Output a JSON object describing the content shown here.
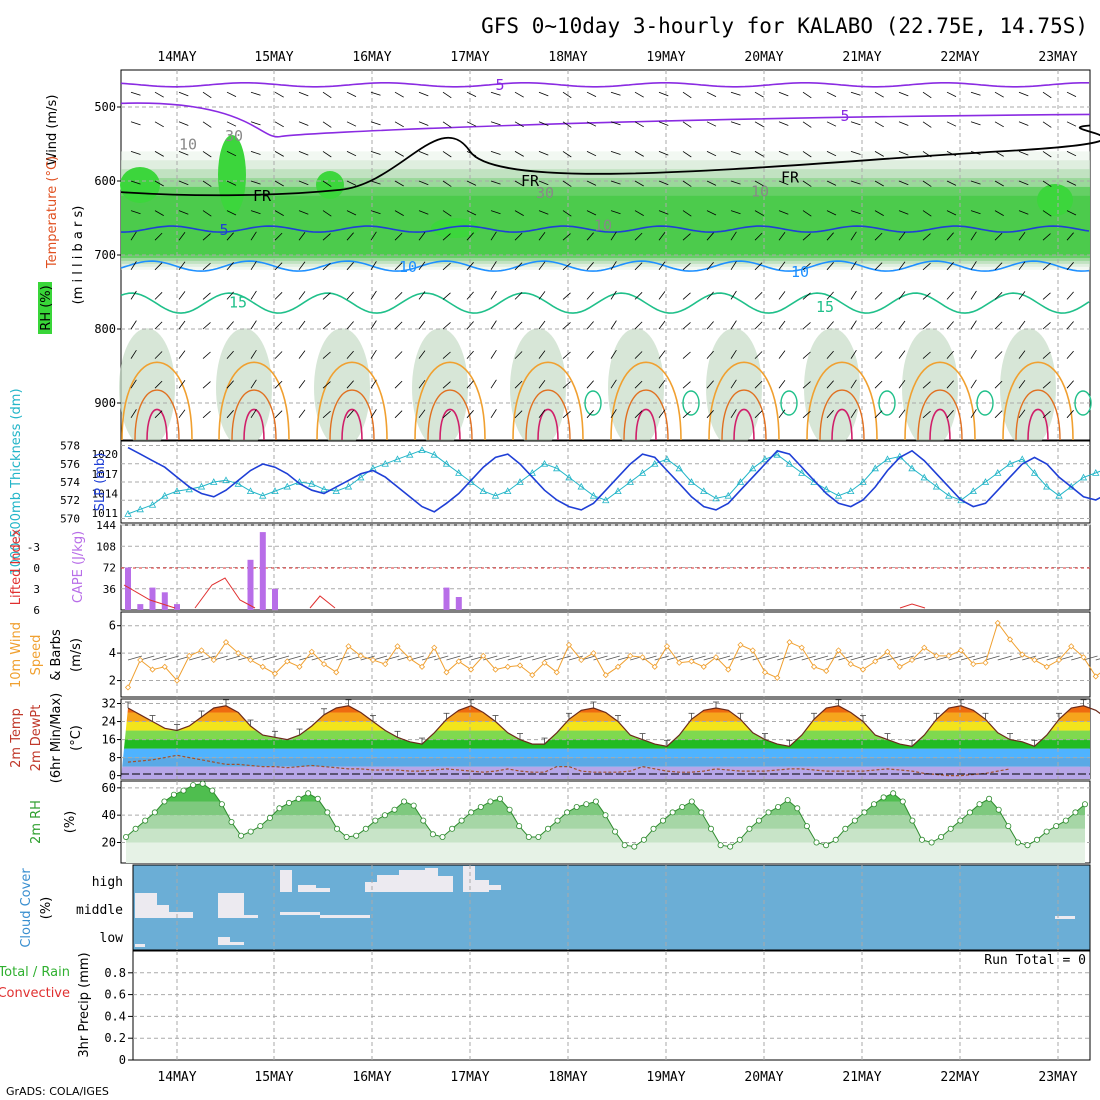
{
  "title": "GFS 0~10day 3-hourly for KALABO (22.75E, 14.75S)",
  "credit": "GrADS: COLA/IGES",
  "dates": [
    "14MAY",
    "15MAY",
    "16MAY",
    "17MAY",
    "18MAY",
    "19MAY",
    "20MAY",
    "21MAY",
    "22MAY",
    "23MAY"
  ],
  "colors": {
    "grid": "#aaaaaa",
    "frame": "#000000",
    "purple": "#8a2be2",
    "blue": "#1f3fd6",
    "cyan": "#22b5c8",
    "orange": "#f0a030",
    "green": "#30b030",
    "red": "#e03030",
    "cloud": "#6baed6"
  },
  "panels": {
    "upper_air": {
      "ylabel_wind": "Wind (m/s)",
      "ylabel_temp": "Temperature (°C)",
      "ylabel_rh": "RH (%)",
      "ylabel_p": "(m i l l i b a r s)",
      "yticks": [
        500,
        600,
        700,
        800,
        900
      ],
      "ylim": [
        450,
        950
      ],
      "contour_labels": [
        "5",
        "5",
        "FR",
        "FR",
        "FR",
        "5",
        "10",
        "10",
        "15",
        "15",
        "30",
        "30",
        "10",
        "10",
        "10"
      ]
    },
    "thickness_slp": {
      "ylabel_left": "1000-500mb Thickness (dm)",
      "ylabel_right": "SLP (mb)",
      "left_ticks": [
        "578",
        "576",
        "574",
        "572",
        "570"
      ],
      "right_ticks": [
        "1020",
        "1017",
        "1014",
        "1011"
      ]
    },
    "li_cape": {
      "ylabel_left": "Lifted Index",
      "ylabel_right": "CAPE (J/kg)",
      "left_ticks": [
        "-3",
        "0",
        "3",
        "6"
      ],
      "right_ticks": [
        "144",
        "108",
        "72",
        "36"
      ]
    },
    "wind10m": {
      "ylabel": "10m Wind Speed & Barbs (m/s)",
      "ylabel_a": "10m Wind",
      "ylabel_b": "Speed",
      "ylabel_c": "& Barbs",
      "ylabel_d": "(m/s)",
      "yticks": [
        "6",
        "4",
        "2"
      ]
    },
    "temp2m": {
      "ylabel_a": "2m Temp",
      "ylabel_b": "2m DewPt",
      "ylabel_c": "(6hr Min/Max)",
      "ylabel_d": "(°C)",
      "yticks": [
        "32",
        "24",
        "16",
        "8",
        "0"
      ]
    },
    "rh2m": {
      "ylabel_a": "2m RH",
      "ylabel_b": "(%)",
      "yticks": [
        "60",
        "40",
        "20"
      ]
    },
    "cloud": {
      "ylabel_a": "Cloud Cover",
      "ylabel_b": "(%)",
      "levels": [
        "high",
        "middle",
        "low"
      ]
    },
    "precip": {
      "ylabel_a": "Total / Rain",
      "ylabel_b": "Convective",
      "ylabel_c": "3hr Precip (mm)",
      "yticks": [
        "0.8",
        "0.6",
        "0.4",
        "0.2",
        "0"
      ],
      "run_total": "Run Total = 0"
    }
  },
  "chart_data": [
    {
      "type": "line",
      "title": "1000-500mb Thickness (dm)",
      "x_unit": "3-hour steps from 13MAY 12Z",
      "series": [
        {
          "name": "Thickness",
          "values": [
            570.5,
            571,
            571.5,
            572.5,
            573,
            573.2,
            573.5,
            574,
            574.2,
            573.8,
            573,
            572.5,
            573,
            573.5,
            574,
            573.8,
            573.2,
            573,
            573.5,
            574.5,
            575.5,
            576,
            576.5,
            577,
            577.5,
            577,
            576,
            575,
            574,
            573,
            572.5,
            573,
            574,
            575,
            576,
            575.5,
            574.5,
            573.5,
            572.5,
            572,
            573,
            574,
            575,
            576,
            576.5,
            575.5,
            574,
            573,
            572.2,
            572.5,
            574,
            575.5,
            576.5,
            577,
            576,
            575,
            574,
            573.2,
            572.5,
            573,
            574,
            575.5,
            576.5,
            576.8,
            575.5,
            574.5,
            573.5,
            572.5,
            572,
            573,
            574,
            575,
            576,
            576.5,
            575,
            573.5,
            572.5,
            573.5,
            574.5,
            575,
            575.5
          ]
        }
      ]
    },
    {
      "type": "line",
      "title": "SLP (mb)",
      "series": [
        {
          "name": "SLP",
          "values": [
            1021,
            1020,
            1019,
            1018,
            1016.5,
            1015,
            1014,
            1013.5,
            1014.5,
            1016,
            1017.5,
            1018.5,
            1018,
            1017,
            1015.5,
            1014.5,
            1014,
            1015,
            1016,
            1017,
            1017.5,
            1016.5,
            1015,
            1013.5,
            1012,
            1011.2,
            1012.5,
            1014,
            1016,
            1018,
            1019.5,
            1020,
            1018.5,
            1016.5,
            1014.5,
            1013,
            1012,
            1011.5,
            1012.5,
            1014.5,
            1016.5,
            1018.5,
            1020,
            1019.5,
            1017.5,
            1015.5,
            1013.5,
            1012,
            1011.5,
            1012.5,
            1014.5,
            1016.5,
            1018.5,
            1020.5,
            1020,
            1018,
            1016,
            1014,
            1012.5,
            1012,
            1013,
            1015,
            1017.5,
            1019.5,
            1020.5,
            1019,
            1017,
            1015,
            1013,
            1012,
            1012.5,
            1014.5,
            1016.5,
            1018.5,
            1019.5,
            1018.5,
            1016.5,
            1015,
            1013.5,
            1013,
            1014
          ]
        }
      ]
    },
    {
      "type": "bar",
      "title": "CAPE (J/kg)",
      "x_unit": "3-hour steps from 13MAY 12Z",
      "values": [
        72,
        10,
        38,
        30,
        10,
        0,
        0,
        0,
        0,
        0,
        85,
        132,
        36,
        0,
        0,
        0,
        0,
        0,
        0,
        0,
        0,
        0,
        0,
        0,
        0,
        0,
        38,
        22,
        0,
        0
      ],
      "ylim": [
        0,
        144
      ]
    },
    {
      "type": "line",
      "title": "10m Wind Speed (m/s)",
      "series": [
        {
          "name": "Speed",
          "values": [
            1.5,
            3.5,
            2.8,
            3,
            2,
            3.8,
            4.2,
            3.5,
            4.8,
            4,
            3.5,
            3,
            2.5,
            3.4,
            3,
            4.1,
            3.2,
            2.6,
            4.5,
            3.8,
            3.5,
            3.2,
            4.5,
            3.6,
            3,
            4.4,
            2.6,
            3.4,
            2.8,
            3.8,
            2.8,
            3,
            3.1,
            2.4,
            3.3,
            2.6,
            4.6,
            3.5,
            4,
            2.4,
            3,
            3.8,
            3.7,
            3,
            4.5,
            3.3,
            3.4,
            3,
            3.7,
            2.8,
            4.6,
            4.2,
            2.6,
            2.2,
            4.8,
            4.4,
            3,
            2.7,
            4.2,
            3.2,
            2.8,
            3.4,
            4.1,
            3,
            3.5,
            4.4,
            3.8,
            3.8,
            4.2,
            3.2,
            3.3,
            6.2,
            5,
            3.9,
            3.5,
            3,
            3.5,
            4.5,
            3.7,
            2.3,
            3
          ]
        }
      ]
    },
    {
      "type": "area",
      "title": "2m Temp (°C)",
      "series": [
        {
          "name": "Temp",
          "values": [
            30,
            27,
            24,
            21,
            20,
            22,
            26,
            30,
            31,
            28,
            22,
            18,
            17,
            16,
            18,
            22,
            27,
            30,
            31,
            28,
            24,
            20,
            17,
            15,
            14,
            19,
            25,
            29,
            31,
            28,
            24,
            19,
            16,
            14,
            14,
            19,
            25,
            29,
            30,
            28,
            24,
            18,
            16,
            14,
            13,
            18,
            25,
            29,
            30,
            29,
            25,
            19,
            16,
            14,
            13,
            18,
            25,
            30,
            31,
            28,
            24,
            18,
            16,
            14,
            13,
            18,
            25,
            30,
            31,
            29,
            25,
            19,
            16,
            15,
            13,
            18,
            25,
            30,
            31,
            29,
            25
          ]
        },
        {
          "name": "DewPt",
          "values": [
            6,
            6.5,
            7,
            8,
            9,
            8,
            7,
            6,
            5,
            5,
            4.5,
            4,
            4,
            3.5,
            4,
            4.5,
            4,
            3.5,
            3,
            3,
            2.5,
            2.5,
            2.5,
            2,
            2,
            2.5,
            3,
            2.5,
            2,
            1.5,
            2,
            3,
            2,
            1.5,
            1.5,
            4,
            4,
            2,
            1.5,
            1.5,
            1.5,
            2,
            4,
            3,
            2,
            1.5,
            1.5,
            2,
            3,
            2.5,
            2,
            2,
            2,
            2.5,
            3,
            3,
            2.5,
            2,
            2,
            2,
            2,
            2.5,
            3,
            2.5,
            2,
            1,
            0.5,
            0,
            0,
            0.5,
            1,
            2,
            3
          ]
        }
      ]
    },
    {
      "type": "area",
      "title": "2m RH (%)",
      "series": [
        {
          "name": "RH",
          "values": [
            24,
            30,
            36,
            42,
            50,
            55,
            58,
            62,
            63,
            58,
            48,
            35,
            25,
            28,
            32,
            38,
            45,
            49,
            52,
            56,
            52,
            42,
            30,
            24,
            25,
            30,
            36,
            40,
            44,
            50,
            47,
            36,
            26,
            24,
            30,
            36,
            42,
            46,
            50,
            52,
            44,
            32,
            24,
            24,
            30,
            36,
            42,
            46,
            48,
            50,
            40,
            28,
            18,
            17,
            22,
            30,
            36,
            42,
            46,
            50,
            42,
            30,
            18,
            17,
            22,
            30,
            36,
            42,
            46,
            51,
            45,
            32,
            20,
            18,
            22,
            30,
            36,
            42,
            48,
            53,
            56,
            50,
            36,
            22,
            20,
            24,
            30,
            36,
            42,
            48,
            52,
            44,
            32,
            20,
            18,
            22,
            28,
            32,
            36,
            42,
            48
          ]
        }
      ]
    },
    {
      "type": "bar",
      "title": "3hr Precip (mm)",
      "values": [
        0
      ],
      "ylim": [
        0,
        1
      ]
    }
  ]
}
